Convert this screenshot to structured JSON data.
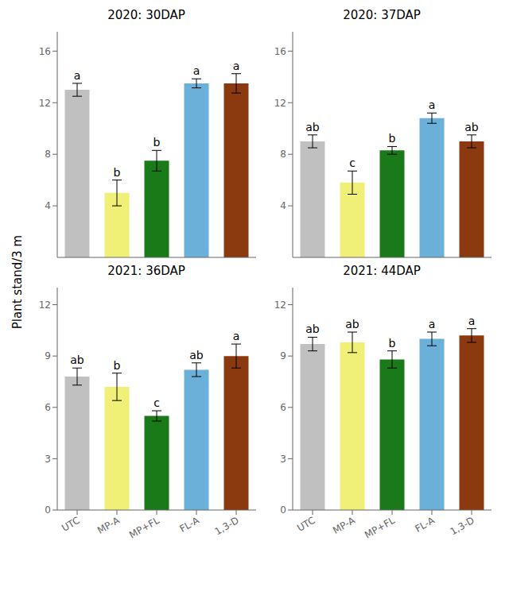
{
  "chart_data": [
    {
      "type": "bar",
      "title": "2020: 30DAP",
      "ylabel": "Plant stand/3 m",
      "categories": [
        "UTC",
        "MP-A",
        "MP+FL",
        "FL-A",
        "1,3-D"
      ],
      "values": [
        13.0,
        5.0,
        7.5,
        13.5,
        13.5
      ],
      "errors": [
        0.5,
        1.0,
        0.8,
        0.35,
        0.75
      ],
      "annotations": [
        "a",
        "b",
        "b",
        "a",
        "a"
      ],
      "colors": [
        "#c0c0c0",
        "#f0f078",
        "#1a7a1a",
        "#6ab0d8",
        "#8b3a10"
      ],
      "ylim": [
        0,
        17.5
      ],
      "yticks": [
        0,
        4,
        8,
        12,
        16
      ],
      "tick_labels": "y"
    },
    {
      "type": "bar",
      "title": "2020: 37DAP",
      "categories": [
        "UTC",
        "MP-A",
        "MP+FL",
        "FL-A",
        "1,3-D"
      ],
      "values": [
        9.0,
        5.8,
        8.3,
        10.8,
        9.0
      ],
      "errors": [
        0.5,
        0.9,
        0.3,
        0.4,
        0.5
      ],
      "annotations": [
        "ab",
        "c",
        "b",
        "a",
        "ab"
      ],
      "colors": [
        "#c0c0c0",
        "#f0f078",
        "#1a7a1a",
        "#6ab0d8",
        "#8b3a10"
      ],
      "ylim": [
        0,
        17.5
      ],
      "yticks": [
        0,
        4,
        8,
        12,
        16
      ],
      "tick_labels": "y"
    },
    {
      "type": "bar",
      "title": "2021: 36DAP",
      "categories": [
        "UTC",
        "MP-A",
        "MP+FL",
        "FL-A",
        "1,3-D"
      ],
      "values": [
        7.8,
        7.2,
        5.5,
        8.2,
        9.0
      ],
      "errors": [
        0.5,
        0.8,
        0.3,
        0.4,
        0.7
      ],
      "annotations": [
        "ab",
        "b",
        "c",
        "ab",
        "a"
      ],
      "colors": [
        "#c0c0c0",
        "#f0f078",
        "#1a7a1a",
        "#6ab0d8",
        "#8b3a10"
      ],
      "ylim": [
        0,
        13
      ],
      "yticks": [
        0,
        3,
        6,
        9,
        12
      ]
    },
    {
      "type": "bar",
      "title": "2021: 44DAP",
      "categories": [
        "UTC",
        "MP-A",
        "MP+FL",
        "FL-A",
        "1,3-D"
      ],
      "values": [
        9.7,
        9.8,
        8.8,
        10.0,
        10.2
      ],
      "errors": [
        0.4,
        0.6,
        0.5,
        0.4,
        0.4
      ],
      "annotations": [
        "ab",
        "ab",
        "b",
        "a",
        "a"
      ],
      "colors": [
        "#c0c0c0",
        "#f0f078",
        "#1a7a1a",
        "#6ab0d8",
        "#8b3a10"
      ],
      "ylim": [
        0,
        13
      ],
      "yticks": [
        0,
        3,
        6,
        9,
        12
      ]
    }
  ]
}
